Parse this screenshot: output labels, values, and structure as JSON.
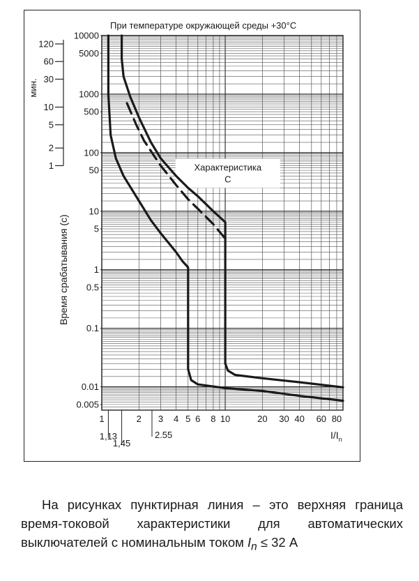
{
  "chart_data": {
    "type": "line",
    "title": "При температуре окружающей среды +30°C",
    "ylabel": "Время срабатывания (с)",
    "xlabel_main": "I/I",
    "xlabel_sub": "n",
    "minutes_label": "мин.",
    "annotation": [
      "Характеристика",
      "C"
    ],
    "x_scale": "log",
    "y_scale": "log",
    "xlim": [
      1,
      90
    ],
    "ylim": [
      0.004,
      10000
    ],
    "grid": true,
    "x_ticks": [
      "1",
      "2",
      "3",
      "4",
      "5",
      "6",
      "8",
      "10",
      "20",
      "30",
      "40",
      "60",
      "80"
    ],
    "x_ticks_extra": [
      "1,13",
      "1,45",
      "2.55"
    ],
    "y_ticks_seconds": [
      "10000",
      "5000",
      "1000",
      "500",
      "100",
      "50",
      "10",
      "5",
      "1",
      "0.5",
      "0.1",
      "0.01",
      "0.005"
    ],
    "y_ticks_minutes": [
      "120",
      "60",
      "30",
      "10",
      "5",
      "2",
      "1"
    ],
    "series": [
      {
        "style": "solid",
        "points": [
          [
            1.13,
            10000
          ],
          [
            1.13,
            1000
          ],
          [
            1.18,
            200
          ],
          [
            1.3,
            80
          ],
          [
            1.5,
            40
          ],
          [
            2,
            15
          ],
          [
            2.5,
            7
          ],
          [
            3,
            4.2
          ],
          [
            4,
            2
          ],
          [
            4.5,
            1.4
          ],
          [
            5,
            1.1
          ],
          [
            5,
            0.02
          ],
          [
            5.3,
            0.013
          ],
          [
            6,
            0.011
          ],
          [
            10,
            0.0095
          ],
          [
            20,
            0.0085
          ],
          [
            40,
            0.007
          ],
          [
            90,
            0.0058
          ]
        ]
      },
      {
        "style": "solid",
        "points": [
          [
            1.45,
            10000
          ],
          [
            1.45,
            4000
          ],
          [
            1.5,
            2000
          ],
          [
            1.7,
            900
          ],
          [
            2,
            400
          ],
          [
            2.5,
            150
          ],
          [
            3,
            80
          ],
          [
            4,
            40
          ],
          [
            5,
            25
          ],
          [
            6,
            18
          ],
          [
            8,
            10
          ],
          [
            10,
            6.5
          ],
          [
            10,
            0.025
          ],
          [
            10.5,
            0.019
          ],
          [
            12,
            0.016
          ],
          [
            20,
            0.014
          ],
          [
            40,
            0.012
          ],
          [
            90,
            0.0098
          ]
        ]
      },
      {
        "style": "dashed",
        "points": [
          [
            1.6,
            700
          ],
          [
            1.9,
            300
          ],
          [
            2.2,
            160
          ],
          [
            2.55,
            100
          ],
          [
            3,
            60
          ],
          [
            3.5,
            40
          ],
          [
            4,
            28
          ],
          [
            5,
            16
          ],
          [
            6,
            11
          ],
          [
            8,
            6
          ],
          [
            10,
            3.4
          ]
        ]
      }
    ]
  },
  "caption": {
    "text": "На рисунках пунктирная линия – это верхняя граница время-токовой характеристики для автоматических выключателей с номинальным током",
    "symbol": "I",
    "symbol_sub": "n",
    "condition": " ≤ 32 А"
  }
}
